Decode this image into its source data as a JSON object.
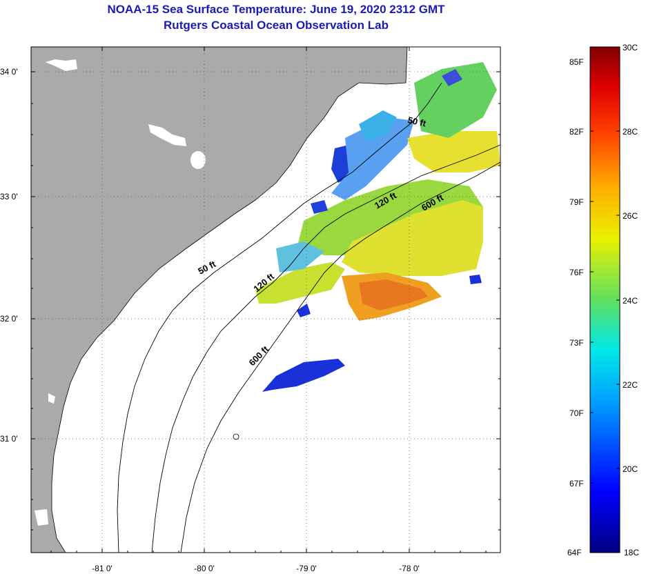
{
  "title_line1": "NOAA-15 Sea Surface Temperature:  June 19, 2020 2312 GMT",
  "title_line2": "Rutgers Coastal Ocean Observation Lab",
  "lat_labels": [
    "34 0'",
    "33 0'",
    "32 0'",
    "31 0'"
  ],
  "lon_labels": [
    "-81 0'",
    "-80 0'",
    "-79 0'",
    "-78 0'"
  ],
  "contour_labels": [
    "50 ft",
    "50 ft",
    "120 ft",
    "120 ft",
    "600 ft",
    "600 ft"
  ],
  "colorbar": {
    "fahrenheit": [
      "85F",
      "82F",
      "79F",
      "76F",
      "73F",
      "70F",
      "67F",
      "64F"
    ],
    "celsius": [
      "30C",
      "28C",
      "26C",
      "24C",
      "22C",
      "20C",
      "18C"
    ]
  },
  "colors": {
    "land": "#aaaaaa",
    "title": "#1a1ab4"
  }
}
